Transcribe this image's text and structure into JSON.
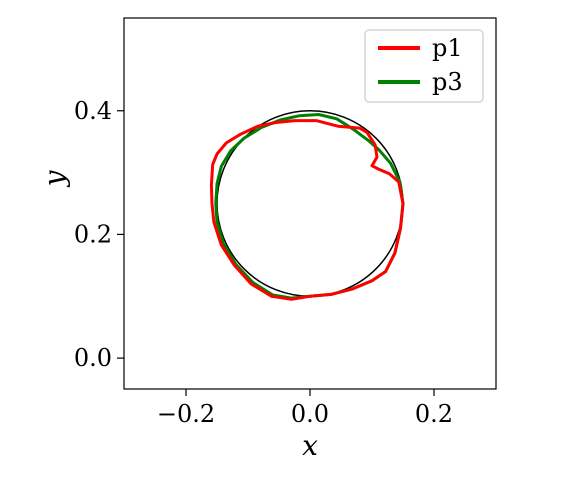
{
  "chart_data": {
    "type": "line",
    "title": "",
    "xlabel": "x",
    "ylabel": "y",
    "xlim": [
      -0.3,
      0.3
    ],
    "ylim": [
      -0.05,
      0.55
    ],
    "xticks": [
      -0.2,
      0.0,
      0.2
    ],
    "xtick_labels": [
      "−0.2",
      "0.0",
      "0.2"
    ],
    "yticks": [
      0.0,
      0.2,
      0.4
    ],
    "ytick_labels": [
      "0.0",
      "0.2",
      "0.4"
    ],
    "grid": false,
    "legend_position": "top-right",
    "reference": {
      "shape": "circle",
      "center": [
        0.0,
        0.25
      ],
      "radius": 0.15,
      "color": "#000000"
    },
    "series": [
      {
        "name": "p1",
        "color": "#ff0000",
        "x": [
          0.15,
          0.146,
          0.137,
          0.122,
          0.1,
          0.069,
          0.034,
          0.0,
          -0.03,
          -0.062,
          -0.095,
          -0.122,
          -0.143,
          -0.155,
          -0.158,
          -0.159,
          -0.157,
          -0.15,
          -0.135,
          -0.112,
          -0.084,
          -0.055,
          -0.024,
          0.01,
          0.045,
          0.08,
          0.092,
          0.105,
          0.108,
          0.1,
          0.112,
          0.128,
          0.143,
          0.15
        ],
        "y": [
          0.25,
          0.21,
          0.17,
          0.14,
          0.125,
          0.112,
          0.103,
          0.1,
          0.095,
          0.1,
          0.12,
          0.15,
          0.183,
          0.22,
          0.25,
          0.28,
          0.313,
          0.33,
          0.348,
          0.362,
          0.375,
          0.381,
          0.384,
          0.384,
          0.375,
          0.372,
          0.365,
          0.345,
          0.325,
          0.311,
          0.305,
          0.298,
          0.285,
          0.25
        ]
      },
      {
        "name": "p3",
        "color": "#008000",
        "x": [
          0.15,
          0.146,
          0.137,
          0.122,
          0.1,
          0.069,
          0.034,
          0.0,
          -0.03,
          -0.06,
          -0.092,
          -0.12,
          -0.14,
          -0.15,
          -0.152,
          -0.15,
          -0.143,
          -0.128,
          -0.106,
          -0.078,
          -0.048,
          -0.017,
          0.014,
          0.043,
          0.07,
          0.094,
          0.112,
          0.13,
          0.145,
          0.15
        ],
        "y": [
          0.25,
          0.21,
          0.17,
          0.14,
          0.125,
          0.112,
          0.103,
          0.1,
          0.097,
          0.102,
          0.122,
          0.152,
          0.186,
          0.22,
          0.25,
          0.282,
          0.31,
          0.335,
          0.356,
          0.373,
          0.385,
          0.392,
          0.394,
          0.387,
          0.37,
          0.352,
          0.336,
          0.315,
          0.285,
          0.25
        ]
      }
    ]
  },
  "legend": {
    "items": [
      {
        "label": "p1",
        "color": "#ff0000"
      },
      {
        "label": "p3",
        "color": "#008000"
      }
    ]
  }
}
